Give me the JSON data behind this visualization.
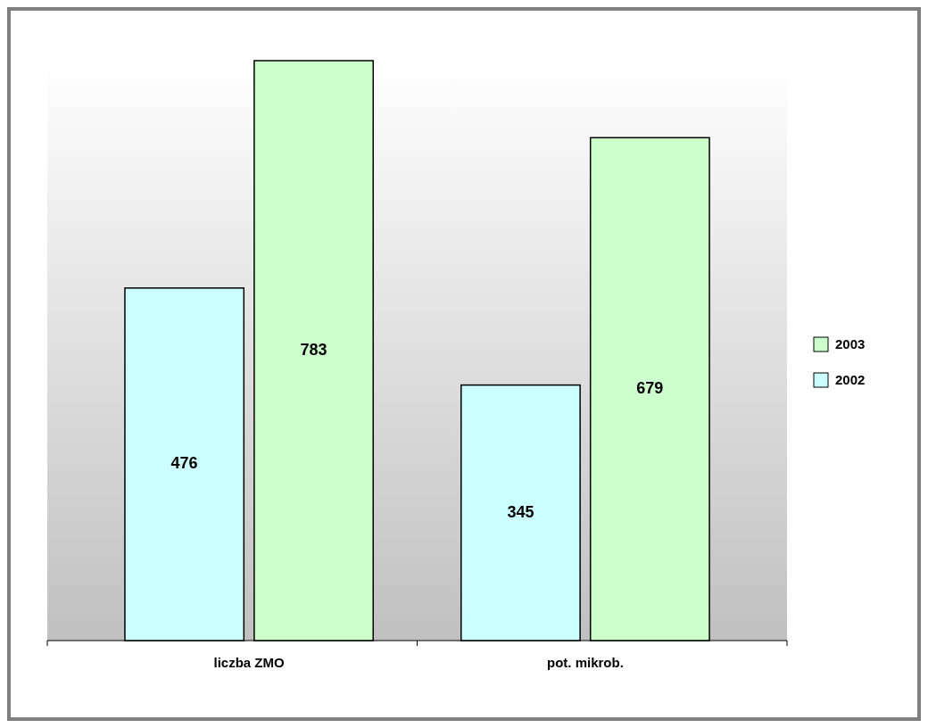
{
  "chart_data": {
    "type": "bar",
    "categories": [
      "liczba ZMO",
      "pot. mikrob."
    ],
    "series": [
      {
        "name": "2002",
        "color": "#ccffff",
        "values": [
          476,
          345
        ]
      },
      {
        "name": "2003",
        "color": "#ccffcc",
        "values": [
          783,
          679
        ]
      }
    ],
    "data_labels": true,
    "legend": "right"
  }
}
